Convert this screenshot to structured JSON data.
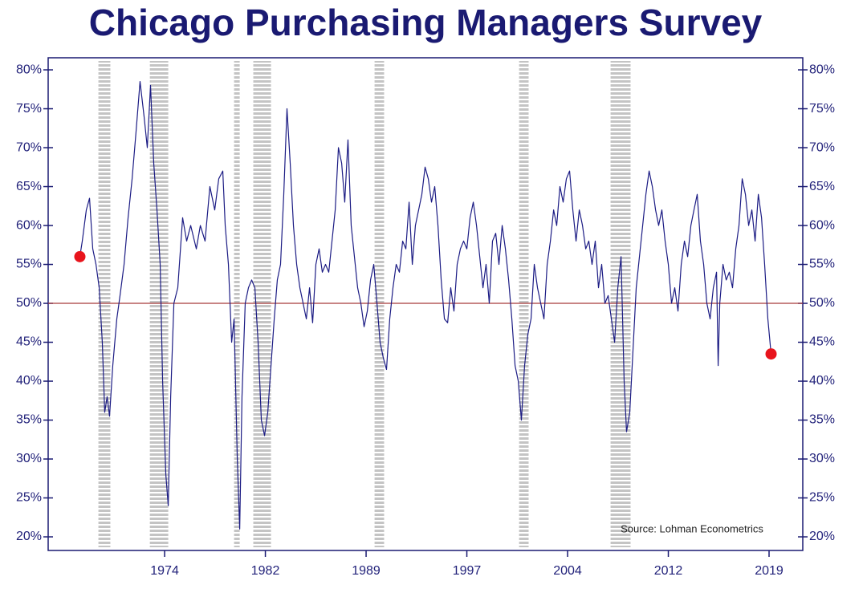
{
  "chart_data": {
    "type": "line",
    "title": "Chicago Purchasing Managers Survey",
    "annotation": "Source: Lohman Econometrics",
    "color": "#1c1c84",
    "endpoint_marker_color": "#e8141c",
    "reference_line": 50,
    "reference_line_color": "#a83a3a",
    "recession_color": "#c4c4c4",
    "recessions": [
      [
        1969.07,
        1969.96
      ],
      [
        1972.9,
        1974.27
      ],
      [
        1979.17,
        1979.59
      ],
      [
        1980.6,
        1981.92
      ],
      [
        1989.63,
        1990.34
      ],
      [
        2000.39,
        2001.1
      ],
      [
        2007.2,
        2008.69
      ]
    ],
    "xlim": [
      1965.33,
      2021.51
    ],
    "xticks": [
      1974,
      {
        "value": 1981.5,
        "label": "1982"
      },
      1989,
      {
        "value": 1996.5,
        "label": "1997"
      },
      2004,
      {
        "value": 2011.5,
        "label": "2012"
      },
      2019
    ],
    "ylim": [
      18.25,
      81.55
    ],
    "yticks": [
      {
        "value": 20,
        "label": "20%"
      },
      {
        "value": 25,
        "label": "25%"
      },
      {
        "value": 30,
        "label": "30%"
      },
      {
        "value": 35,
        "label": "35%"
      },
      {
        "value": 40,
        "label": "40%"
      },
      {
        "value": 45,
        "label": "45%"
      },
      {
        "value": 50,
        "label": "50%"
      },
      {
        "value": 55,
        "label": "55%"
      },
      {
        "value": 60,
        "label": "60%"
      },
      {
        "value": 65,
        "label": "65%"
      },
      {
        "value": 70,
        "label": "70%"
      },
      {
        "value": 75,
        "label": "75%"
      },
      {
        "value": 80,
        "label": "80%"
      }
    ],
    "x": [
      1967.69,
      1967.87,
      1968.17,
      1968.41,
      1968.65,
      1968.89,
      1969.13,
      1969.36,
      1969.54,
      1969.72,
      1969.9,
      1970.14,
      1970.44,
      1970.68,
      1970.98,
      1971.28,
      1971.58,
      1971.87,
      1972.17,
      1972.47,
      1972.71,
      1972.95,
      1973.19,
      1973.43,
      1973.67,
      1973.85,
      1974.09,
      1974.27,
      1974.45,
      1974.69,
      1974.98,
      1975.34,
      1975.64,
      1975.94,
      1976.36,
      1976.66,
      1977.01,
      1977.37,
      1977.73,
      1978.03,
      1978.33,
      1978.51,
      1978.75,
      1978.99,
      1979.17,
      1979.41,
      1979.59,
      1979.76,
      1980.0,
      1980.24,
      1980.48,
      1980.72,
      1980.96,
      1981.2,
      1981.44,
      1981.68,
      1981.92,
      1982.16,
      1982.39,
      1982.63,
      1982.87,
      1983.11,
      1983.35,
      1983.59,
      1983.83,
      1984.07,
      1984.31,
      1984.55,
      1984.79,
      1985.02,
      1985.26,
      1985.5,
      1985.74,
      1985.98,
      1986.22,
      1986.46,
      1986.7,
      1986.94,
      1987.18,
      1987.41,
      1987.65,
      1987.89,
      1988.13,
      1988.37,
      1988.61,
      1988.85,
      1989.09,
      1989.33,
      1989.57,
      1989.81,
      1990.04,
      1990.28,
      1990.52,
      1990.76,
      1991.0,
      1991.24,
      1991.48,
      1991.72,
      1991.96,
      1992.2,
      1992.44,
      1992.67,
      1992.91,
      1993.15,
      1993.39,
      1993.63,
      1993.87,
      1994.11,
      1994.35,
      1994.59,
      1994.83,
      1995.07,
      1995.3,
      1995.54,
      1995.78,
      1996.02,
      1996.26,
      1996.5,
      1996.74,
      1996.98,
      1997.22,
      1997.46,
      1997.7,
      1997.93,
      1998.17,
      1998.41,
      1998.65,
      1998.89,
      1999.13,
      1999.37,
      1999.61,
      1999.85,
      2000.09,
      2000.33,
      2000.56,
      2000.8,
      2001.04,
      2001.28,
      2001.52,
      2001.76,
      2002.0,
      2002.24,
      2002.48,
      2002.72,
      2002.96,
      2003.19,
      2003.43,
      2003.67,
      2003.91,
      2004.15,
      2004.39,
      2004.63,
      2004.87,
      2005.11,
      2005.35,
      2005.58,
      2005.82,
      2006.06,
      2006.3,
      2006.54,
      2006.78,
      2007.02,
      2007.26,
      2007.5,
      2007.74,
      2007.98,
      2008.21,
      2008.39,
      2008.63,
      2008.87,
      2009.11,
      2009.35,
      2009.59,
      2009.83,
      2010.07,
      2010.31,
      2010.55,
      2010.78,
      2011.02,
      2011.26,
      2011.5,
      2011.74,
      2011.98,
      2012.22,
      2012.46,
      2012.7,
      2012.94,
      2013.18,
      2013.41,
      2013.65,
      2013.89,
      2014.13,
      2014.37,
      2014.61,
      2014.85,
      2015.09,
      2015.21,
      2015.33,
      2015.57,
      2015.81,
      2016.04,
      2016.28,
      2016.52,
      2016.76,
      2017.0,
      2017.24,
      2017.48,
      2017.72,
      2017.96,
      2018.2,
      2018.44,
      2018.67,
      2018.91,
      2019.15
    ],
    "values": [
      56,
      58,
      62,
      63.5,
      57,
      55,
      52,
      45,
      36,
      38,
      35.5,
      42,
      48,
      51,
      55,
      61,
      66,
      72,
      78.5,
      74,
      70,
      78,
      68,
      62,
      55,
      40,
      28,
      24,
      38,
      50,
      52,
      61,
      58,
      60,
      57,
      60,
      58,
      65,
      62,
      66,
      67,
      60,
      55,
      45,
      48,
      30,
      21,
      38,
      50,
      52,
      53,
      52,
      45,
      35,
      33,
      36,
      42,
      48,
      53,
      55,
      64,
      75,
      68,
      60,
      55,
      52,
      50,
      48,
      52,
      47.5,
      55,
      57,
      54,
      55,
      54,
      58,
      62,
      70,
      68,
      63,
      71,
      60,
      56,
      52,
      50,
      47,
      49,
      53,
      55,
      50,
      45,
      43,
      41.5,
      48,
      52,
      55,
      54,
      58,
      57,
      63,
      55,
      60,
      62,
      64,
      67.5,
      66,
      63,
      65,
      60,
      53,
      48,
      47.5,
      52,
      49,
      55,
      57,
      58,
      57,
      61,
      63,
      60,
      56,
      52,
      55,
      50,
      58,
      59,
      55,
      60,
      57,
      53,
      48,
      42,
      40,
      35,
      42,
      46,
      48,
      55,
      52,
      50,
      48,
      55,
      58,
      62,
      60,
      65,
      63,
      66,
      67,
      62,
      58,
      62,
      60,
      57,
      58,
      55,
      58,
      52,
      55,
      50,
      51,
      48,
      45,
      52,
      56,
      40,
      33.5,
      36,
      44,
      52,
      56,
      60,
      64,
      67,
      65,
      62,
      60,
      62,
      58,
      55,
      50,
      52,
      49,
      55,
      58,
      56,
      60,
      62,
      64,
      58,
      55,
      50,
      48,
      52,
      54,
      42,
      50,
      55,
      53,
      54,
      52,
      57,
      60,
      66,
      64,
      60,
      62,
      58,
      64,
      61,
      55,
      48,
      43.5
    ]
  }
}
